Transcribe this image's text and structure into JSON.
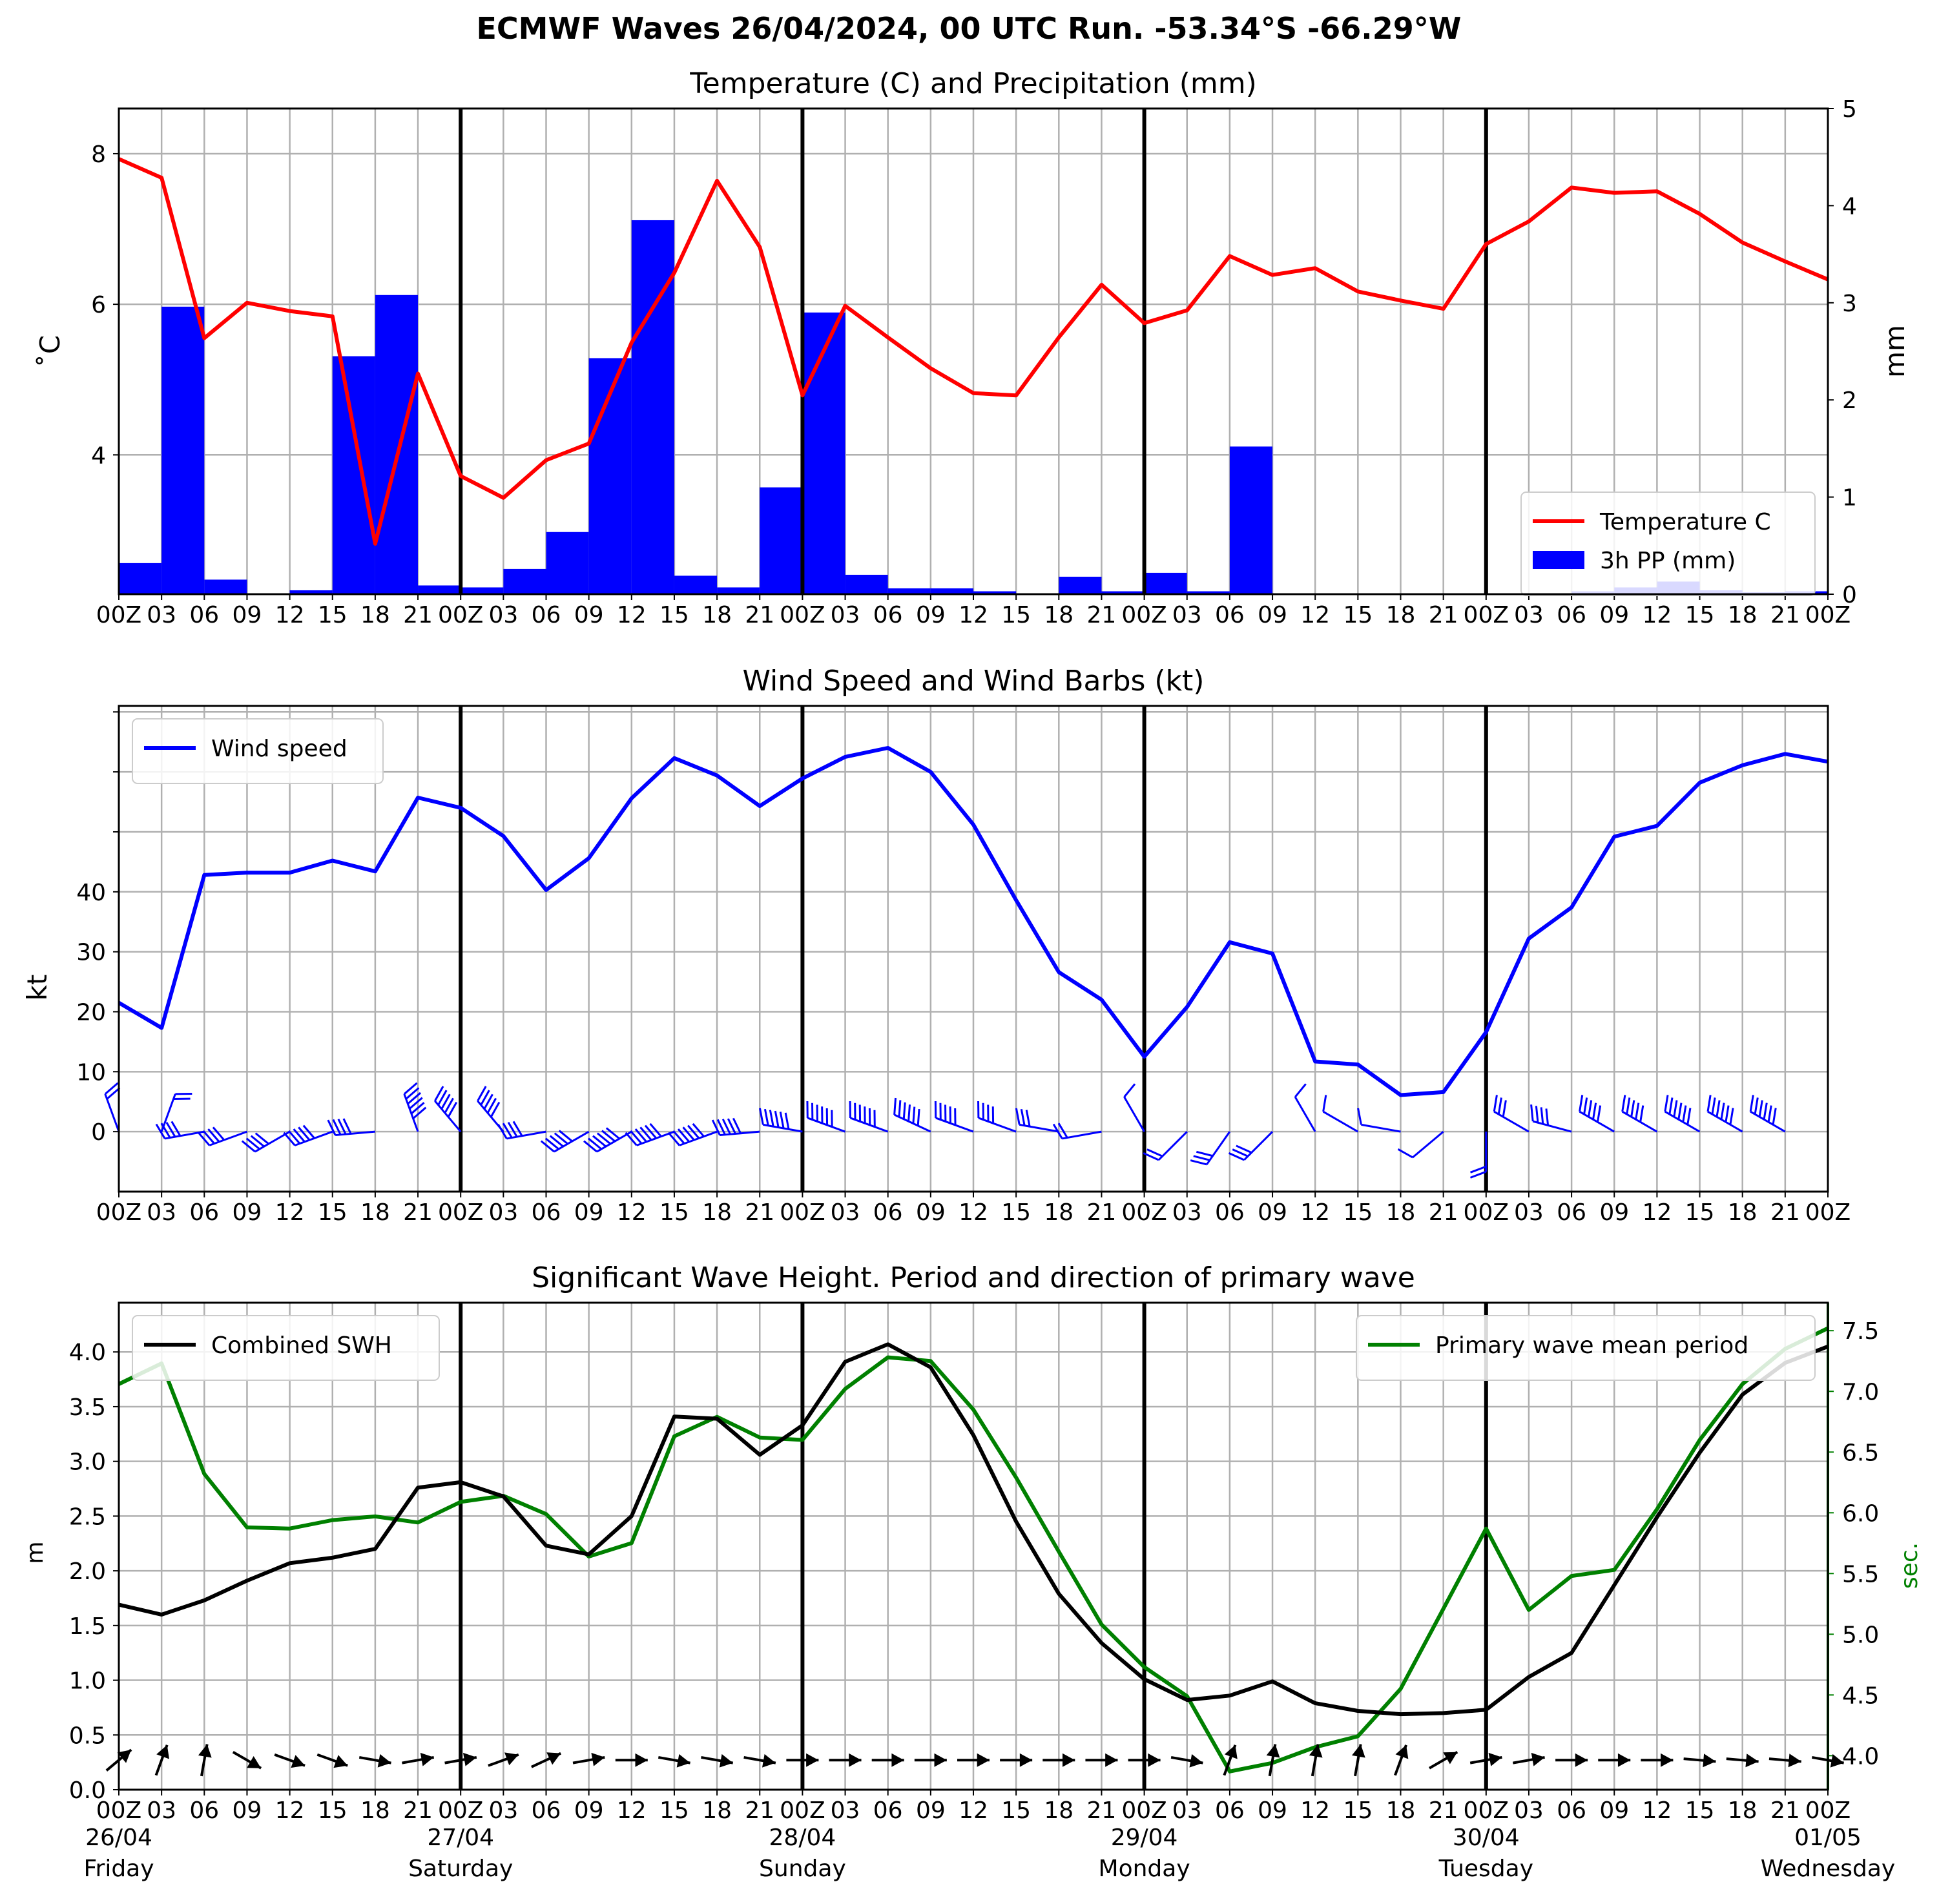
{
  "title": "ECMWF Waves 26/04/2024, 00 UTC Run. -53.34°S -66.29°W",
  "colors": {
    "temperature": "#ff0000",
    "precipitation": "#0000ff",
    "wind": "#0000ff",
    "swh": "#000000",
    "period": "#008000",
    "grid": "#b0b0b0"
  },
  "x_tick_labels": [
    "00Z",
    "03",
    "06",
    "09",
    "12",
    "15",
    "18",
    "21",
    "00Z",
    "03",
    "06",
    "09",
    "12",
    "15",
    "18",
    "21",
    "00Z",
    "03",
    "06",
    "09",
    "12",
    "15",
    "18",
    "21",
    "00Z",
    "03",
    "06",
    "09",
    "12",
    "15",
    "18",
    "21",
    "00Z",
    "03",
    "06",
    "09",
    "12",
    "15",
    "18",
    "21",
    "00Z"
  ],
  "days": [
    {
      "date": "26/04",
      "weekday": "Friday"
    },
    {
      "date": "27/04",
      "weekday": "Saturday"
    },
    {
      "date": "28/04",
      "weekday": "Sunday"
    },
    {
      "date": "29/04",
      "weekday": "Monday"
    },
    {
      "date": "30/04",
      "weekday": "Tuesday"
    },
    {
      "date": "01/05",
      "weekday": "Wednesday"
    }
  ],
  "chart_data": [
    {
      "type": "line",
      "title": "Temperature (C) and Precipitation (mm)",
      "ylabel": "$^\\circ$C",
      "ylabel_display": "˚C",
      "y2label": "mm",
      "ylim": [
        2.15,
        8.6
      ],
      "y2lim": [
        0,
        5
      ],
      "yticks": [
        4,
        6,
        8
      ],
      "y2ticks": [
        0,
        1,
        2,
        3,
        4,
        5
      ],
      "legend_position": "lower right",
      "x_step_hours": 3,
      "series": [
        {
          "name": "Temperature C",
          "kind": "line",
          "values": [
            7.93,
            7.68,
            5.55,
            6.02,
            5.91,
            5.84,
            2.82,
            5.08,
            3.72,
            3.43,
            3.93,
            4.15,
            5.49,
            6.42,
            7.64,
            6.76,
            4.79,
            5.98,
            5.56,
            5.15,
            4.82,
            4.79,
            5.56,
            6.26,
            5.75,
            5.92,
            6.64,
            6.39,
            6.48,
            6.17,
            6.05,
            5.94,
            6.8,
            7.1,
            7.55,
            7.48,
            7.5,
            7.2,
            6.82,
            6.57,
            6.33
          ]
        },
        {
          "name": "3h PP (mm)",
          "kind": "bar",
          "values": [
            0.32,
            2.96,
            0.15,
            0,
            0.04,
            2.45,
            3.08,
            0.09,
            0.07,
            0.26,
            0.64,
            2.43,
            3.85,
            0.19,
            0.07,
            1.1,
            2.9,
            0.2,
            0.06,
            0.06,
            0.03,
            0,
            0.18,
            0.03,
            0.22,
            0.03,
            1.52,
            0,
            0,
            0,
            0,
            0,
            0,
            0,
            0.03,
            0.07,
            0.13,
            0.04,
            0.02,
            0.03
          ]
        }
      ]
    },
    {
      "type": "line",
      "title": "Wind Speed and Wind Barbs (kt)",
      "ylabel": "kt",
      "ylim": [
        -10,
        71
      ],
      "yticks": [
        0,
        10,
        20,
        30,
        40
      ],
      "yticks_unlabeled": [
        50,
        60,
        70
      ],
      "legend_position": "upper left",
      "x_step_hours": 3,
      "series": [
        {
          "name": "Wind speed",
          "kind": "line",
          "values": [
            21.5,
            17.3,
            42.8,
            43.2,
            43.2,
            45.2,
            43.4,
            55.7,
            54.0,
            49.3,
            40.3,
            45.6,
            55.6,
            62.3,
            59.4,
            54.3,
            58.9,
            62.5,
            64.0,
            60.0,
            51.2,
            38.6,
            26.6,
            22.0,
            12.5,
            20.8,
            31.6,
            29.7,
            11.7,
            11.2,
            6.1,
            6.6,
            16.6,
            32.2,
            37.4,
            49.2,
            51.0,
            58.2,
            61.1,
            63.0,
            61.7
          ]
        },
        {
          "name": "wind barbs",
          "kind": "barbs",
          "wind_dir_deg": [
            340,
            20,
            260,
            250,
            240,
            250,
            265,
            340,
            320,
            320,
            260,
            240,
            240,
            250,
            250,
            265,
            280,
            290,
            290,
            295,
            290,
            290,
            280,
            260,
            330,
            225,
            215,
            225,
            330,
            300,
            280,
            230,
            180,
            300,
            285,
            300,
            300,
            300,
            300,
            300,
            300
          ]
        }
      ]
    },
    {
      "type": "line",
      "title": "Significant Wave Height. Period and direction of primary wave",
      "ylabel": "m",
      "y2label": "sec.",
      "ylim": [
        0,
        4.45
      ],
      "y2lim": [
        3.72,
        7.73
      ],
      "yticks": [
        0.0,
        0.5,
        1.0,
        1.5,
        2.0,
        2.5,
        3.0,
        3.5,
        4.0
      ],
      "ytick_labels": [
        "0.0",
        "0.5",
        "1.0",
        "1.5",
        "2.0",
        "2.5",
        "3.0",
        "3.5",
        "4.0"
      ],
      "y2ticks": [
        4.0,
        4.5,
        5.0,
        5.5,
        6.0,
        6.5,
        7.0,
        7.5
      ],
      "y2tick_labels": [
        "4.0",
        "4.5",
        "5.0",
        "5.5",
        "6.0",
        "6.5",
        "7.0",
        "7.5"
      ],
      "x_step_hours": 3,
      "series": [
        {
          "name": "Combined SWH",
          "kind": "line",
          "legend_position": "upper left",
          "values": [
            1.69,
            1.6,
            1.73,
            1.91,
            2.07,
            2.12,
            2.2,
            2.76,
            2.81,
            2.68,
            2.23,
            2.15,
            2.5,
            3.41,
            3.39,
            3.06,
            3.33,
            3.91,
            4.07,
            3.86,
            3.24,
            2.45,
            1.79,
            1.34,
            1.01,
            0.82,
            0.86,
            0.99,
            0.79,
            0.72,
            0.69,
            0.7,
            0.73,
            1.03,
            1.25,
            1.87,
            2.49,
            3.08,
            3.61,
            3.9,
            4.05
          ]
        },
        {
          "name": "Primary wave mean period",
          "kind": "line",
          "legend_position": "upper right",
          "values": [
            7.06,
            7.23,
            6.32,
            5.88,
            5.87,
            5.94,
            5.97,
            5.92,
            6.09,
            6.14,
            5.99,
            5.64,
            5.75,
            6.63,
            6.79,
            6.62,
            6.6,
            7.02,
            7.28,
            7.25,
            6.85,
            6.29,
            5.68,
            5.08,
            4.73,
            4.49,
            3.87,
            3.94,
            4.07,
            4.16,
            4.55,
            5.21,
            5.87,
            5.2,
            5.48,
            5.53,
            6.03,
            6.6,
            7.06,
            7.35,
            7.52
          ]
        },
        {
          "name": "primary wave direction",
          "kind": "arrows",
          "wave_dir_deg": [
            230,
            200,
            190,
            300,
            290,
            290,
            280,
            260,
            260,
            250,
            245,
            260,
            270,
            280,
            280,
            280,
            270,
            270,
            270,
            270,
            270,
            270,
            270,
            270,
            270,
            280,
            200,
            190,
            190,
            190,
            200,
            240,
            260,
            260,
            270,
            270,
            270,
            275,
            275,
            275,
            280
          ]
        }
      ]
    }
  ]
}
